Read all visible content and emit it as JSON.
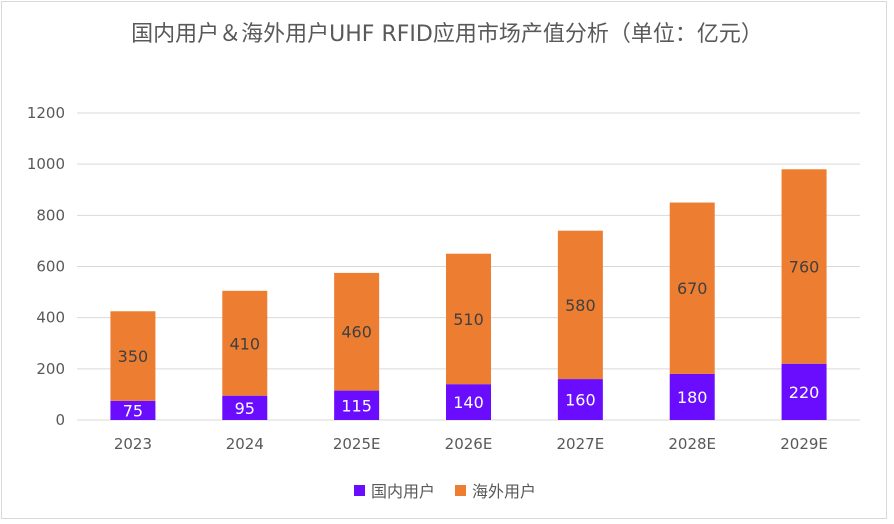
{
  "chart_data": {
    "type": "bar",
    "stacked": true,
    "title": "国内用户＆海外用户UHF RFID应用市场产值分析（单位：亿元）",
    "categories": [
      "2023",
      "2024",
      "2025E",
      "2026E",
      "2027E",
      "2028E",
      "2029E"
    ],
    "series": [
      {
        "name": "国内用户",
        "color": "#6a0dff",
        "values": [
          75,
          95,
          115,
          140,
          160,
          180,
          220
        ]
      },
      {
        "name": "海外用户",
        "color": "#ed7d31",
        "values": [
          350,
          410,
          460,
          510,
          580,
          670,
          760
        ]
      }
    ],
    "ylim": [
      0,
      1200
    ],
    "yticks": [
      0,
      200,
      400,
      600,
      800,
      1000,
      1200
    ],
    "grid": true,
    "legend_position": "bottom"
  }
}
